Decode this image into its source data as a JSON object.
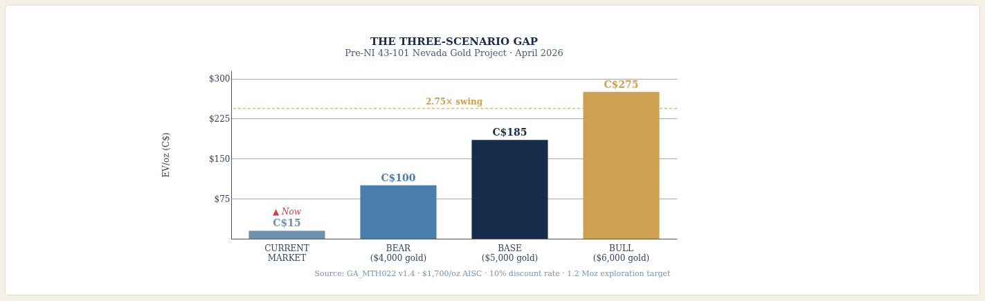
{
  "chart_data": {
    "type": "bar",
    "title": "THE THREE-SCENARIO GAP",
    "subtitle": "Pre-NI 43-101 Nevada Gold Project · April 2026",
    "ylabel": "EV/oz (C$)",
    "categories": [
      "CURRENT\nMARKET",
      "BEAR\n($4,000 gold)",
      "BASE\n($5,000 gold)",
      "BULL\n($6,000 gold)"
    ],
    "values": [
      15,
      100,
      185,
      275
    ],
    "colors": [
      "#6f8fb0",
      "#4a7fab",
      "#172b4a",
      "#cda052"
    ],
    "value_labels": [
      "C$15",
      "C$100",
      "C$185",
      "C$275"
    ],
    "ylim": [
      0,
      315
    ],
    "yticks": [
      {
        "value": 75,
        "label": "$75"
      },
      {
        "value": 150,
        "label": "$150"
      },
      {
        "value": 225,
        "label": "$225"
      },
      {
        "value": 300,
        "label": "$300"
      }
    ],
    "grid": "y",
    "ref_lines": [
      {
        "axis": "y",
        "value": 244,
        "label": "2.75× swing",
        "color": "#cda052",
        "line_style": "dashed"
      }
    ],
    "annotations": [
      {
        "text": "▲ Now",
        "x": "CURRENT\nMARKET",
        "y": 15
      },
      "Source: GA_MTH022 v1.4 · $1,700/oz AISC · 10% discount rate · 1.2 Moz exploration target"
    ]
  }
}
